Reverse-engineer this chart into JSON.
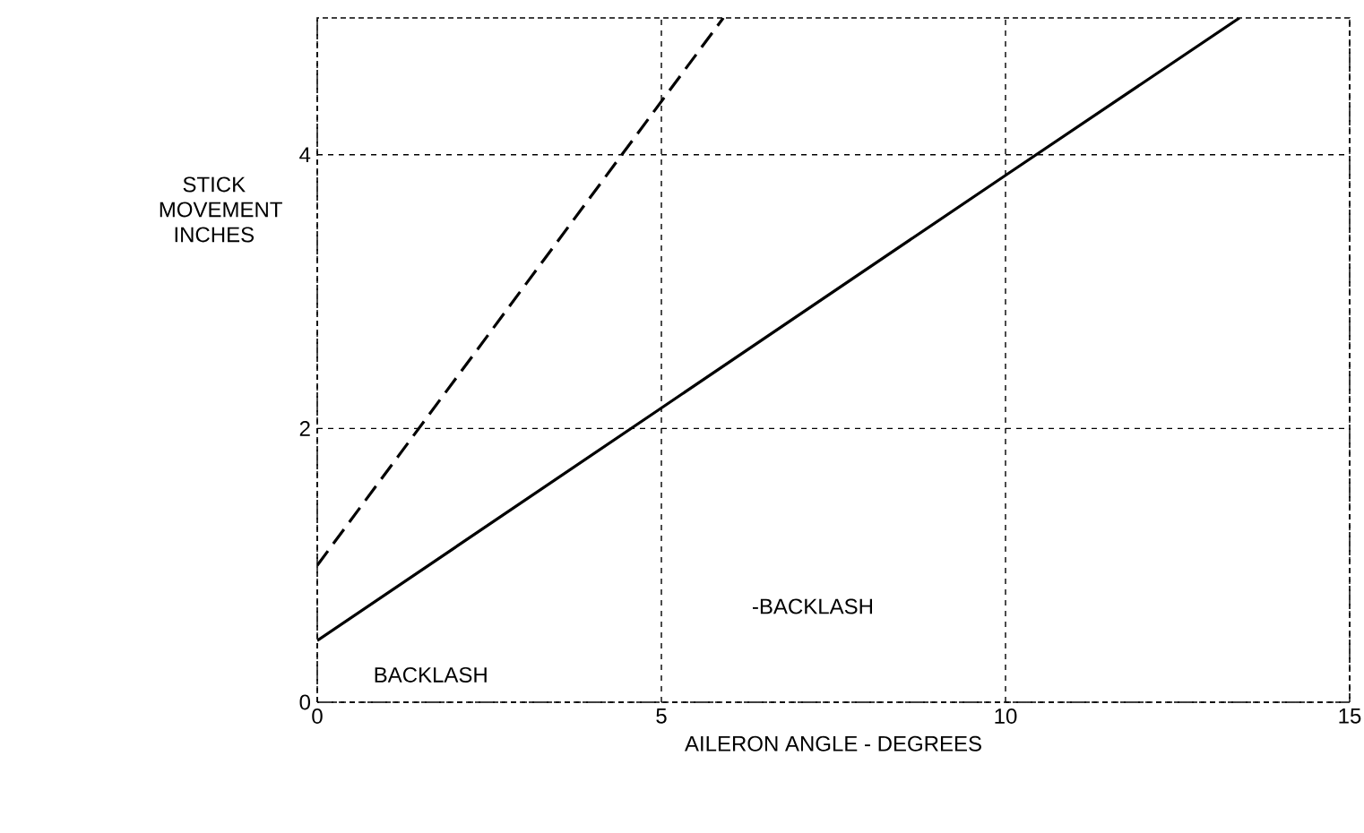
{
  "chart_data": {
    "type": "line",
    "xlabel": "AILERON ANGLE - DEGREES",
    "ylabel": "STICK MOVEMENT INCHES",
    "xlim": [
      0,
      15
    ],
    "ylim": [
      0,
      5
    ],
    "xticks": [
      0,
      5,
      10,
      15
    ],
    "yticks": [
      0,
      2,
      4
    ],
    "grid": true,
    "marker": "none",
    "series": [
      {
        "x": [
          0,
          5.9
        ],
        "values": [
          1.0,
          5
        ],
        "color": "#000000",
        "line_style": "dashed"
      },
      {
        "x": [
          0,
          5,
          10,
          13.4
        ],
        "values": [
          0.45,
          2.15,
          3.85,
          5
        ],
        "color": "#000000",
        "line_style": "solid"
      }
    ],
    "annotations": [
      "BACKLASH",
      "-BACKLASH"
    ]
  }
}
